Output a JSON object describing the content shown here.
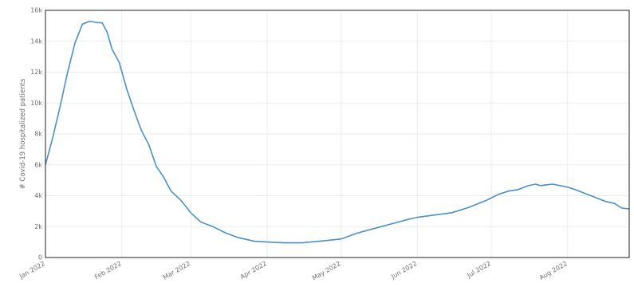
{
  "chart_data": {
    "type": "line",
    "ylabel": "# Covid-19 hospitalized patients",
    "xlabel": "",
    "ylim": [
      0,
      16000
    ],
    "y_ticks": [
      {
        "value": 0,
        "label": "0"
      },
      {
        "value": 2000,
        "label": "2k"
      },
      {
        "value": 4000,
        "label": "4k"
      },
      {
        "value": 6000,
        "label": "6k"
      },
      {
        "value": 8000,
        "label": "8k"
      },
      {
        "value": 10000,
        "label": "10k"
      },
      {
        "value": 12000,
        "label": "12k"
      },
      {
        "value": 14000,
        "label": "14k"
      },
      {
        "value": 16000,
        "label": "16k"
      }
    ],
    "x_ticks": [
      {
        "value": "2022-01-01",
        "label": "Jan 2022"
      },
      {
        "value": "2022-02-01",
        "label": "Feb 2022"
      },
      {
        "value": "2022-03-01",
        "label": "Mar 2022"
      },
      {
        "value": "2022-04-01",
        "label": "Apr 2022"
      },
      {
        "value": "2022-05-01",
        "label": "May 2022"
      },
      {
        "value": "2022-06-01",
        "label": "Jun 2022"
      },
      {
        "value": "2022-07-01",
        "label": "Jul 2022"
      },
      {
        "value": "2022-08-01",
        "label": "Aug 2022"
      }
    ],
    "xlim": [
      "2022-01-01",
      "2022-08-26"
    ],
    "grid": true,
    "series_color": "#4a90c8",
    "series": [
      {
        "name": "",
        "x": [
          "2022-01-01",
          "2022-01-04",
          "2022-01-07",
          "2022-01-10",
          "2022-01-13",
          "2022-01-16",
          "2022-01-19",
          "2022-01-22",
          "2022-01-24",
          "2022-01-26",
          "2022-01-28",
          "2022-01-31",
          "2022-02-03",
          "2022-02-06",
          "2022-02-09",
          "2022-02-12",
          "2022-02-15",
          "2022-02-18",
          "2022-02-21",
          "2022-02-25",
          "2022-03-01",
          "2022-03-05",
          "2022-03-10",
          "2022-03-15",
          "2022-03-20",
          "2022-03-27",
          "2022-04-01",
          "2022-04-08",
          "2022-04-15",
          "2022-04-22",
          "2022-05-01",
          "2022-05-08",
          "2022-05-15",
          "2022-05-22",
          "2022-05-29",
          "2022-06-01",
          "2022-06-08",
          "2022-06-15",
          "2022-06-22",
          "2022-06-29",
          "2022-07-04",
          "2022-07-08",
          "2022-07-12",
          "2022-07-16",
          "2022-07-19",
          "2022-07-21",
          "2022-07-23",
          "2022-07-26",
          "2022-07-29",
          "2022-08-01",
          "2022-08-04",
          "2022-08-08",
          "2022-08-12",
          "2022-08-16",
          "2022-08-20",
          "2022-08-23",
          "2022-08-26"
        ],
        "y": [
          6000,
          7800,
          9800,
          12000,
          13900,
          15100,
          15300,
          15200,
          15200,
          14600,
          13500,
          12600,
          10900,
          9500,
          8200,
          7300,
          5900,
          5200,
          4300,
          3700,
          2900,
          2300,
          2000,
          1600,
          1300,
          1050,
          1000,
          950,
          950,
          1050,
          1200,
          1600,
          1900,
          2200,
          2500,
          2600,
          2750,
          2900,
          3250,
          3700,
          4100,
          4300,
          4400,
          4650,
          4750,
          4650,
          4700,
          4750,
          4650,
          4550,
          4400,
          4150,
          3900,
          3650,
          3500,
          3200,
          3150
        ]
      }
    ]
  }
}
